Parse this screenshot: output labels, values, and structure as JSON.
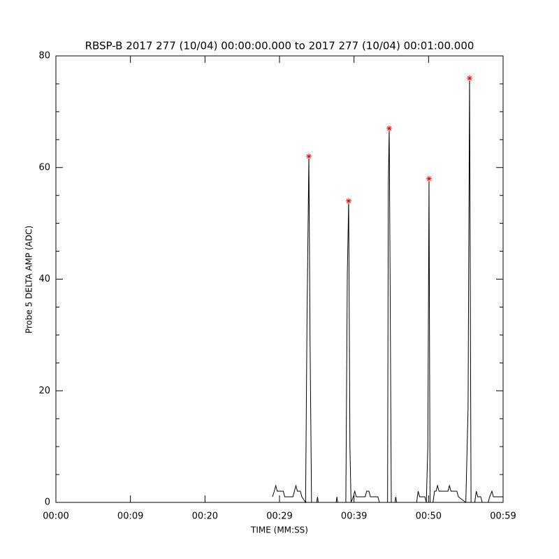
{
  "chart_data": {
    "type": "line",
    "title": "RBSP-B 2017 277 (10/04) 00:00:00.000 to 2017 277 (10/04) 00:01:00.000",
    "x_label": "TIME (MM:SS)",
    "y_label": "Probe 5 DELTA AMP (ADC)",
    "xlim": [
      0,
      60
    ],
    "ylim": [
      0,
      80
    ],
    "xticks": [
      {
        "value": 0,
        "label": "00:00"
      },
      {
        "value": 10,
        "label": "00:09"
      },
      {
        "value": 20,
        "label": "00:20"
      },
      {
        "value": 30,
        "label": "00:29"
      },
      {
        "value": 40,
        "label": "00:39"
      },
      {
        "value": 50,
        "label": "00:50"
      },
      {
        "value": 60,
        "label": "00:59"
      }
    ],
    "yticks": [
      0,
      20,
      40,
      60,
      80
    ],
    "yminorticks": [
      5,
      10,
      15,
      25,
      30,
      35,
      45,
      50,
      55,
      65,
      70,
      75
    ],
    "series": [
      {
        "color": "#000000",
        "x": [
          29.06,
          29.3,
          29.5,
          29.7,
          30.5,
          30.7,
          31.8,
          32.0,
          32.2,
          32.4,
          32.8,
          33.0,
          33.5,
          33.7,
          33.94,
          34.1,
          34.3,
          35.0,
          35.1,
          35.2,
          37.6,
          37.7,
          37.8,
          38.9,
          39.1,
          39.28,
          39.45,
          39.6,
          39.9,
          40.1,
          40.3,
          41.5,
          41.7,
          42.0,
          42.2,
          43.2,
          43.4,
          44.5,
          44.6,
          44.72,
          44.85,
          45.0,
          45.5,
          45.6,
          45.7,
          48.4,
          48.6,
          48.8,
          49.5,
          49.7,
          49.9,
          50.06,
          50.2,
          50.6,
          50.8,
          51.0,
          51.2,
          51.4,
          52.6,
          52.8,
          53.0,
          53.8,
          54.0,
          55.0,
          55.3,
          55.5,
          55.7,
          56.2,
          56.4,
          56.6,
          57.0,
          57.2,
          58.0,
          58.2,
          58.5,
          58.7,
          60
        ],
        "values": [
          1,
          2,
          3,
          2,
          2,
          1,
          1,
          2,
          3,
          2,
          2,
          1,
          0,
          34,
          62,
          29,
          0,
          0,
          1,
          0,
          0,
          1,
          0,
          0,
          41,
          54,
          10,
          0,
          1,
          2,
          1,
          1,
          2,
          2,
          1,
          1,
          0,
          0,
          57,
          67,
          38,
          0,
          0,
          1,
          0,
          0,
          2,
          1,
          1,
          0,
          10,
          58,
          0,
          0,
          2,
          2,
          3,
          2,
          2,
          3,
          2,
          2,
          1,
          0,
          17,
          76,
          0,
          0,
          2,
          1,
          1,
          0,
          0,
          1,
          2,
          1,
          1
        ]
      },
      {
        "color": "#ff0000",
        "marker": "asterisk",
        "x": [
          33.94,
          39.28,
          44.72,
          50.06,
          55.5
        ],
        "values": [
          62,
          54,
          67,
          58,
          76
        ]
      }
    ]
  }
}
